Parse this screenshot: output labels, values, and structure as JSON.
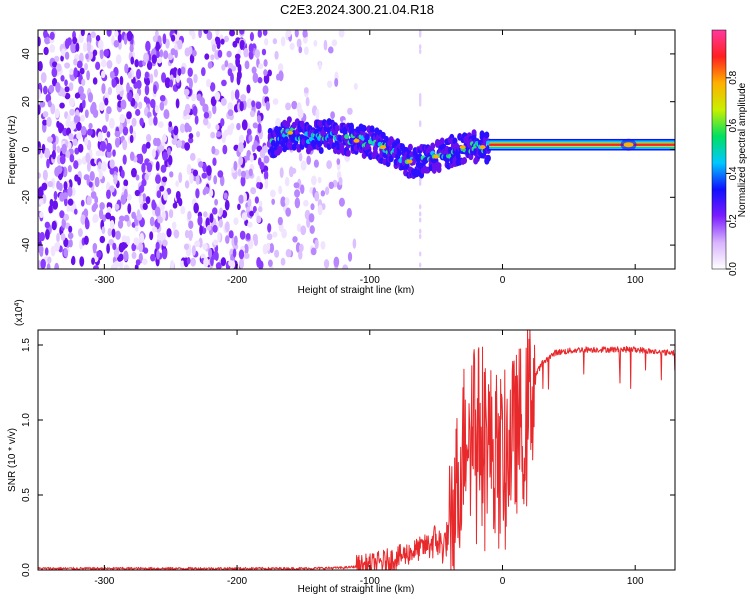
{
  "title": "C2E3.2024.300.21.04.R18",
  "chart_data": [
    {
      "type": "heatmap",
      "panel": "spectrogram",
      "xlabel": "Height of straight line (km)",
      "ylabel": "Frequency (Hz)",
      "xlim": [
        -350,
        130
      ],
      "ylim": [
        -50,
        50
      ],
      "xticks": [
        -300,
        -200,
        -100,
        0,
        100
      ],
      "yticks": [
        -40,
        -20,
        0,
        20,
        40
      ],
      "colorbar": {
        "label": "Normalized spectral amplitude",
        "range": [
          0,
          1
        ],
        "ticks": [
          0.0,
          0.2,
          0.4,
          0.6,
          0.8
        ],
        "colormap": [
          "#ffffff",
          "#d8b4ff",
          "#7a1cff",
          "#1010ff",
          "#00c8ff",
          "#00e060",
          "#c8f000",
          "#ffb000",
          "#ff2020",
          "#ff3aa0"
        ]
      },
      "signal_track": {
        "x": [
          -175,
          -160,
          -145,
          -130,
          -115,
          -100,
          -90,
          -80,
          -70,
          -60,
          -50,
          -40,
          -30,
          -20,
          -10,
          0,
          20,
          60,
          100,
          130
        ],
        "y": [
          3,
          7,
          5,
          6,
          4,
          3,
          1,
          -2,
          -5,
          -5,
          -3,
          -1,
          1,
          1,
          1,
          2,
          2,
          2,
          2,
          2
        ]
      },
      "noise_region_x": [
        -350,
        -110
      ]
    },
    {
      "type": "line",
      "panel": "snr",
      "xlabel": "Height of straight line (km)",
      "ylabel": "SNR (10 * v/v)",
      "y_multiplier": "(x10^4)",
      "xlim": [
        -350,
        130
      ],
      "ylim": [
        0,
        1.6
      ],
      "xticks": [
        -300,
        -200,
        -100,
        0,
        100
      ],
      "yticks": [
        0.0,
        0.5,
        1.0,
        1.5
      ],
      "series": [
        {
          "color": "#e8292c",
          "x": [
            -350,
            -300,
            -250,
            -200,
            -150,
            -120,
            -100,
            -80,
            -60,
            -50,
            -45,
            -40,
            -35,
            -30,
            -25,
            -22,
            -20,
            -15,
            -10,
            -5,
            0,
            5,
            10,
            15,
            20,
            25,
            30,
            40,
            50,
            60,
            70,
            80,
            90,
            100,
            110,
            120,
            130
          ],
          "values": [
            0.01,
            0.01,
            0.01,
            0.01,
            0.01,
            0.015,
            0.03,
            0.08,
            0.15,
            0.2,
            0.15,
            0.25,
            0.5,
            0.8,
            1.1,
            1.2,
            0.95,
            1.0,
            0.85,
            0.8,
            0.75,
            0.85,
            0.9,
            1.0,
            1.15,
            1.3,
            1.38,
            1.45,
            1.46,
            1.47,
            1.47,
            1.47,
            1.47,
            1.47,
            1.46,
            1.45,
            1.45
          ]
        }
      ]
    }
  ]
}
